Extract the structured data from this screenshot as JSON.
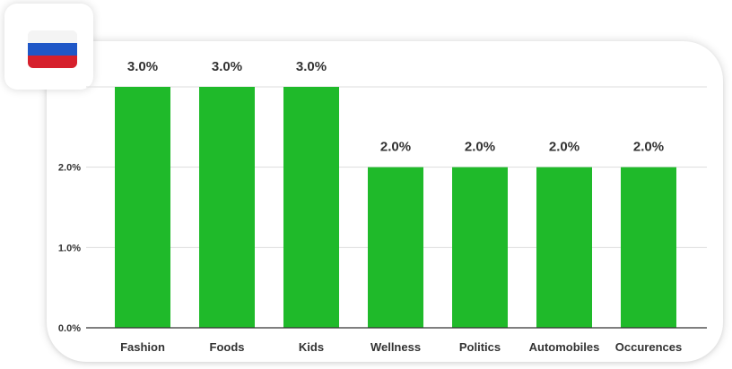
{
  "flag": {
    "icon": "russia-flag-icon",
    "colors": [
      "#f4f4f4",
      "#1f57c7",
      "#d6202c"
    ]
  },
  "chart_data": {
    "type": "bar",
    "title": "",
    "xlabel": "",
    "ylabel": "",
    "categories": [
      "Fashion",
      "Foods",
      "Kids",
      "Wellness",
      "Politics",
      "Automobiles",
      "Occurences"
    ],
    "values": [
      3.0,
      3.0,
      3.0,
      2.0,
      2.0,
      2.0,
      2.0
    ],
    "value_labels": [
      "3.0%",
      "3.0%",
      "3.0%",
      "2.0%",
      "2.0%",
      "2.0%",
      "2.0%"
    ],
    "y_ticks": [
      0,
      1,
      2,
      3
    ],
    "y_tick_labels": [
      "0.0%",
      "1.0%",
      "2.0%",
      ""
    ],
    "ylim": [
      0,
      3
    ],
    "grid": true,
    "legend": "none",
    "bar_color": "#1fba2a",
    "grid_color": "#dddddd",
    "axis_color": "#333333"
  }
}
